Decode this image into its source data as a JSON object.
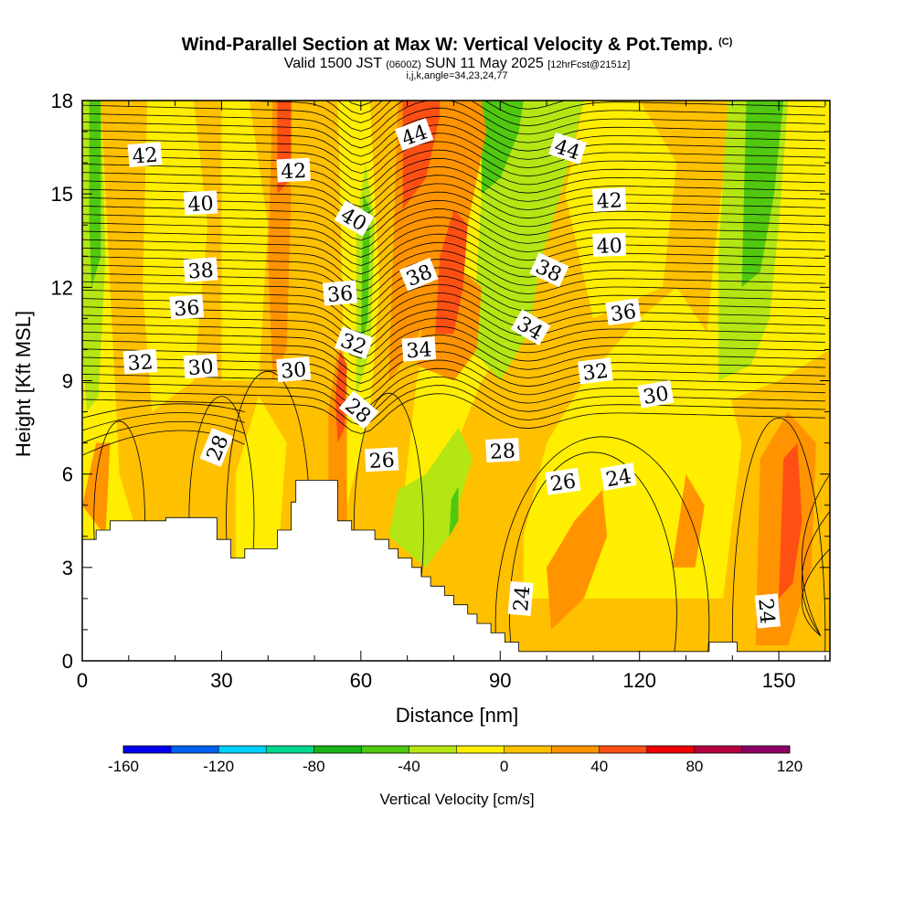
{
  "title": {
    "main": "Wind-Parallel Section at Max W: Vertical Velocity & Pot.Temp.",
    "mark": "(C)",
    "valid_a": "Valid 1500 JST",
    "valid_b": "(0600Z)",
    "valid_c": "SUN 11 May 2025",
    "valid_d": "[12hrFcst@2151z]",
    "indices": "i,j,k,angle=34,23,24,77"
  },
  "chart_data": {
    "type": "heatmap",
    "xlabel": "Distance [nm]",
    "ylabel": "Height [Kft MSL]",
    "xlim": [
      0,
      161
    ],
    "ylim": [
      0,
      18
    ],
    "x_ticks": [
      0,
      30,
      60,
      90,
      120,
      150
    ],
    "y_ticks": [
      0,
      3,
      6,
      9,
      12,
      15,
      18
    ],
    "colorbar": {
      "label": "Vertical Velocity [cm/s]",
      "ticks": [
        -160,
        -120,
        -80,
        -40,
        0,
        40,
        80,
        120
      ],
      "bounds": [
        -160,
        -140,
        -120,
        -100,
        -80,
        -60,
        -40,
        -20,
        0,
        20,
        40,
        60,
        80,
        100,
        120
      ],
      "colors": [
        "#0000ee",
        "#0060ee",
        "#00d0ff",
        "#00d890",
        "#18b418",
        "#50c810",
        "#b4e614",
        "#ffee00",
        "#ffc000",
        "#ff9400",
        "#ff5014",
        "#ee0000",
        "#b40040",
        "#8c0064"
      ]
    },
    "field_colors": {
      "bg": "#ffc000",
      "light": "#ffee00",
      "light_green": "#b4e614",
      "mid_green": "#50c810",
      "orange": "#ff9400",
      "red_orange": "#ff5014",
      "terrain": "#ffffff"
    },
    "theta_labels": [
      {
        "text": "42",
        "x": 13.5,
        "y": 16.25,
        "rot": -5
      },
      {
        "text": "40",
        "x": 25.5,
        "y": 14.7,
        "rot": -3
      },
      {
        "text": "38",
        "x": 25.5,
        "y": 12.55,
        "rot": -4
      },
      {
        "text": "36",
        "x": 22.5,
        "y": 11.35,
        "rot": -4
      },
      {
        "text": "32",
        "x": 12.5,
        "y": 9.6,
        "rot": -4
      },
      {
        "text": "30",
        "x": 25.5,
        "y": 9.45,
        "rot": -4
      },
      {
        "text": "28",
        "x": 29.0,
        "y": 6.85,
        "rot": -68
      },
      {
        "text": "42",
        "x": 45.5,
        "y": 15.75,
        "rot": -3
      },
      {
        "text": "40",
        "x": 58.5,
        "y": 14.2,
        "rot": 30
      },
      {
        "text": "36",
        "x": 55.5,
        "y": 11.8,
        "rot": -5
      },
      {
        "text": "32",
        "x": 58.5,
        "y": 10.2,
        "rot": 20
      },
      {
        "text": "30",
        "x": 45.5,
        "y": 9.35,
        "rot": -5
      },
      {
        "text": "28",
        "x": 59.5,
        "y": 8.05,
        "rot": 40
      },
      {
        "text": "26",
        "x": 64.5,
        "y": 6.45,
        "rot": -3
      },
      {
        "text": "44",
        "x": 71.5,
        "y": 16.9,
        "rot": -20
      },
      {
        "text": "38",
        "x": 72.5,
        "y": 12.4,
        "rot": -22
      },
      {
        "text": "34",
        "x": 72.5,
        "y": 10.0,
        "rot": -4
      },
      {
        "text": "28",
        "x": 90.5,
        "y": 6.75,
        "rot": -3
      },
      {
        "text": "44",
        "x": 104.5,
        "y": 16.45,
        "rot": 18
      },
      {
        "text": "38",
        "x": 100.5,
        "y": 12.55,
        "rot": 25
      },
      {
        "text": "34",
        "x": 96.5,
        "y": 10.7,
        "rot": 30
      },
      {
        "text": "42",
        "x": 113.5,
        "y": 14.8,
        "rot": -3
      },
      {
        "text": "40",
        "x": 113.5,
        "y": 13.35,
        "rot": -2
      },
      {
        "text": "36",
        "x": 116.5,
        "y": 11.2,
        "rot": -8
      },
      {
        "text": "32",
        "x": 110.5,
        "y": 9.3,
        "rot": -7
      },
      {
        "text": "30",
        "x": 123.5,
        "y": 8.55,
        "rot": -10
      },
      {
        "text": "26",
        "x": 103.5,
        "y": 5.75,
        "rot": -8
      },
      {
        "text": "24",
        "x": 115.5,
        "y": 5.9,
        "rot": -10
      },
      {
        "text": "24",
        "x": 94.5,
        "y": 2.0,
        "rot": -85
      },
      {
        "text": "24",
        "x": 147.5,
        "y": 1.6,
        "rot": 85
      }
    ]
  }
}
